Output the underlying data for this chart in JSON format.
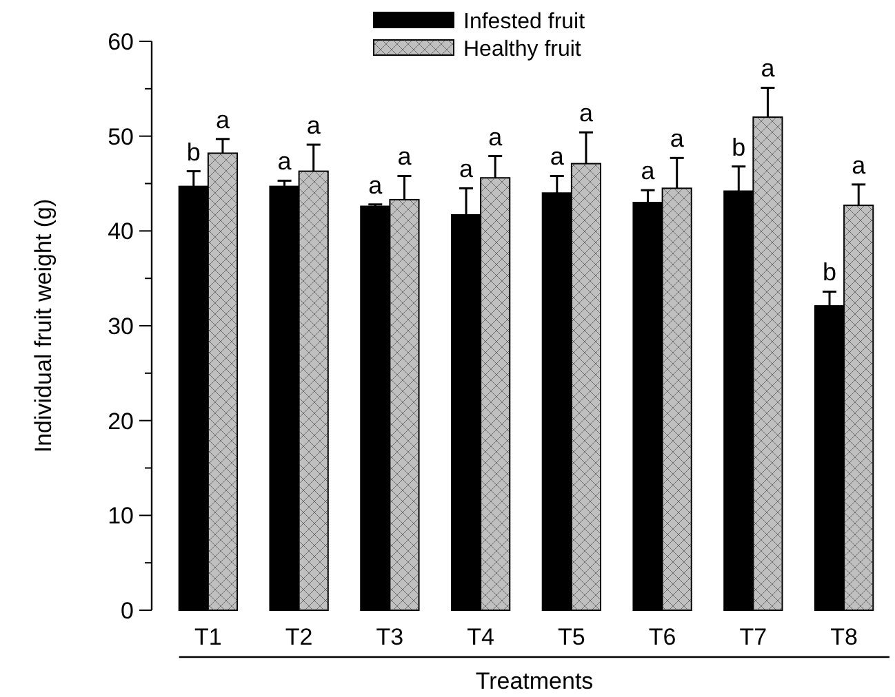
{
  "chart_data": {
    "type": "bar",
    "xlabel": "Treatments",
    "ylabel": "Individual fruit weight (g)",
    "categories": [
      "T1",
      "T2",
      "T3",
      "T4",
      "T5",
      "T6",
      "T7",
      "T8"
    ],
    "series": [
      {
        "name": "Infested fruit",
        "color": "#000000",
        "values": [
          44.7,
          44.7,
          42.6,
          41.7,
          44.0,
          43.0,
          44.2,
          32.1
        ],
        "errors": [
          1.6,
          0.6,
          0.2,
          2.8,
          1.8,
          1.3,
          2.6,
          1.5
        ]
      },
      {
        "name": "Healthy fruit",
        "color": "#c0c0c0",
        "values": [
          48.2,
          46.3,
          43.3,
          45.6,
          47.1,
          44.5,
          52.0,
          42.7
        ],
        "errors": [
          1.5,
          2.8,
          2.5,
          2.3,
          3.3,
          3.2,
          3.1,
          2.2
        ]
      }
    ],
    "ylim": [
      0,
      60
    ],
    "yticks": [
      0,
      {
        "value": 5,
        "label": null
      },
      10,
      {
        "value": 15,
        "label": null
      },
      20,
      {
        "value": 25,
        "label": null
      },
      30,
      {
        "value": 35,
        "label": null
      },
      40,
      {
        "value": 45,
        "label": null
      },
      50,
      {
        "value": 55,
        "label": null
      },
      60
    ],
    "legend": "top",
    "annotations": [
      "b",
      "a",
      "a",
      "a",
      "a",
      "a",
      "a",
      "a",
      "a",
      "a",
      "a",
      "a",
      "b",
      "a",
      "b",
      "a"
    ]
  }
}
